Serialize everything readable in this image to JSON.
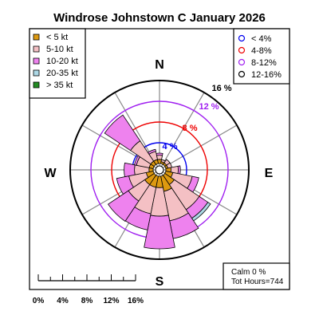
{
  "chart_data": {
    "type": "windrose",
    "title": "Windrose  Johnstown C January 2026",
    "directions": [
      "N",
      "NNE",
      "NE",
      "ENE",
      "E",
      "ESE",
      "SE",
      "SSE",
      "S",
      "SSW",
      "SW",
      "WSW",
      "W",
      "WNW",
      "NW",
      "NNW"
    ],
    "compass_labels": {
      "N": "N",
      "E": "E",
      "S": "S",
      "W": "W"
    },
    "speed_bins": [
      {
        "name": "< 5  kt",
        "color": "#dd9910",
        "values": [
          0.8,
          0.4,
          0.4,
          0.4,
          1.0,
          1.4,
          2.2,
          3.0,
          2.2,
          2.2,
          2.2,
          1.4,
          0.8,
          0.8,
          0.8,
          0.8
        ]
      },
      {
        "name": "5-10 kt",
        "color": "#f4c0c4",
        "values": [
          0.8,
          0.4,
          0.8,
          0.8,
          1.4,
          3.8,
          5.8,
          5.8,
          5.5,
          5.2,
          3.8,
          3.4,
          2.8,
          2.5,
          4.7,
          1.6
        ]
      },
      {
        "name": "10-20 kt",
        "color": "#ee82ee",
        "values": [
          0.4,
          0.0,
          0.0,
          0.0,
          0.4,
          1.3,
          2.0,
          3.5,
          6.3,
          3.2,
          4.7,
          2.4,
          2.0,
          0.4,
          6.0,
          0.4
        ]
      },
      {
        "name": "20-35 kt",
        "color": "#add8e6",
        "values": [
          0.0,
          0.0,
          0.0,
          0.0,
          0.0,
          0.0,
          0.6,
          0.0,
          0.0,
          0.0,
          0.0,
          0.0,
          0.0,
          0.0,
          0.0,
          0.0
        ]
      },
      {
        "name": "> 35 kt",
        "color": "#228b22",
        "values": [
          0,
          0,
          0,
          0,
          0,
          0,
          0,
          0,
          0,
          0,
          0,
          0,
          0,
          0,
          0,
          0
        ]
      }
    ],
    "rings": [
      {
        "value": 4,
        "label": "< 4%",
        "ring_label": "4 %",
        "color": "#0000ee"
      },
      {
        "value": 8,
        "label": "4-8%",
        "ring_label": "8 %",
        "color": "#ee0000"
      },
      {
        "value": 12,
        "label": "8-12%",
        "ring_label": "12 %",
        "color": "#a020f0"
      },
      {
        "value": 16,
        "label": "12-16%",
        "ring_label": "16 %",
        "color": "#000000"
      }
    ],
    "rmax": 16,
    "scale_ticks": [
      "0%",
      "4%",
      "8%",
      "12%",
      "16%"
    ],
    "calm_text": "Calm 0 %",
    "hours_text": "Tot Hours=744",
    "legend_speed_position": "top-left",
    "legend_ring_position": "top-right"
  }
}
